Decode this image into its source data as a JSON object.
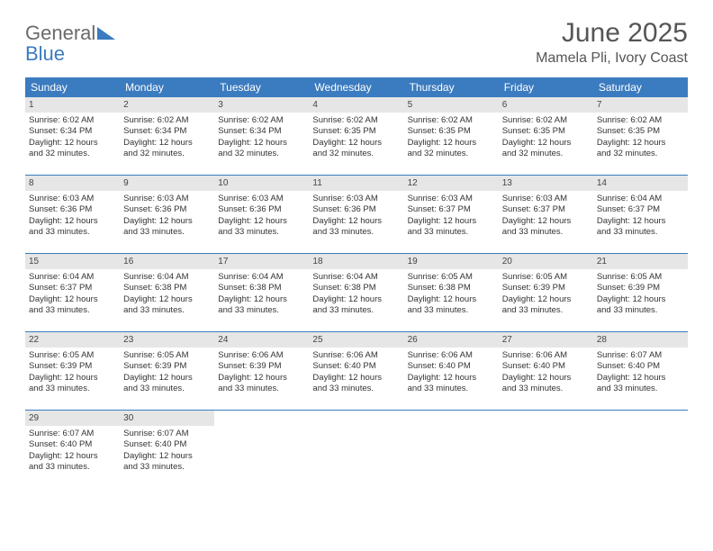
{
  "logo": {
    "general": "General",
    "blue": "Blue"
  },
  "title": "June 2025",
  "location": "Mamela Pli, Ivory Coast",
  "colors": {
    "header_bg": "#3b7bbf",
    "header_text": "#ffffff",
    "daynum_bg": "#e6e6e6",
    "rule": "#3b7bbf",
    "body_text": "#333333",
    "title_text": "#555555"
  },
  "day_headers": [
    "Sunday",
    "Monday",
    "Tuesday",
    "Wednesday",
    "Thursday",
    "Friday",
    "Saturday"
  ],
  "weeks": [
    [
      {
        "n": "1",
        "sr": "Sunrise: 6:02 AM",
        "ss": "Sunset: 6:34 PM",
        "dl1": "Daylight: 12 hours",
        "dl2": "and 32 minutes."
      },
      {
        "n": "2",
        "sr": "Sunrise: 6:02 AM",
        "ss": "Sunset: 6:34 PM",
        "dl1": "Daylight: 12 hours",
        "dl2": "and 32 minutes."
      },
      {
        "n": "3",
        "sr": "Sunrise: 6:02 AM",
        "ss": "Sunset: 6:34 PM",
        "dl1": "Daylight: 12 hours",
        "dl2": "and 32 minutes."
      },
      {
        "n": "4",
        "sr": "Sunrise: 6:02 AM",
        "ss": "Sunset: 6:35 PM",
        "dl1": "Daylight: 12 hours",
        "dl2": "and 32 minutes."
      },
      {
        "n": "5",
        "sr": "Sunrise: 6:02 AM",
        "ss": "Sunset: 6:35 PM",
        "dl1": "Daylight: 12 hours",
        "dl2": "and 32 minutes."
      },
      {
        "n": "6",
        "sr": "Sunrise: 6:02 AM",
        "ss": "Sunset: 6:35 PM",
        "dl1": "Daylight: 12 hours",
        "dl2": "and 32 minutes."
      },
      {
        "n": "7",
        "sr": "Sunrise: 6:02 AM",
        "ss": "Sunset: 6:35 PM",
        "dl1": "Daylight: 12 hours",
        "dl2": "and 32 minutes."
      }
    ],
    [
      {
        "n": "8",
        "sr": "Sunrise: 6:03 AM",
        "ss": "Sunset: 6:36 PM",
        "dl1": "Daylight: 12 hours",
        "dl2": "and 33 minutes."
      },
      {
        "n": "9",
        "sr": "Sunrise: 6:03 AM",
        "ss": "Sunset: 6:36 PM",
        "dl1": "Daylight: 12 hours",
        "dl2": "and 33 minutes."
      },
      {
        "n": "10",
        "sr": "Sunrise: 6:03 AM",
        "ss": "Sunset: 6:36 PM",
        "dl1": "Daylight: 12 hours",
        "dl2": "and 33 minutes."
      },
      {
        "n": "11",
        "sr": "Sunrise: 6:03 AM",
        "ss": "Sunset: 6:36 PM",
        "dl1": "Daylight: 12 hours",
        "dl2": "and 33 minutes."
      },
      {
        "n": "12",
        "sr": "Sunrise: 6:03 AM",
        "ss": "Sunset: 6:37 PM",
        "dl1": "Daylight: 12 hours",
        "dl2": "and 33 minutes."
      },
      {
        "n": "13",
        "sr": "Sunrise: 6:03 AM",
        "ss": "Sunset: 6:37 PM",
        "dl1": "Daylight: 12 hours",
        "dl2": "and 33 minutes."
      },
      {
        "n": "14",
        "sr": "Sunrise: 6:04 AM",
        "ss": "Sunset: 6:37 PM",
        "dl1": "Daylight: 12 hours",
        "dl2": "and 33 minutes."
      }
    ],
    [
      {
        "n": "15",
        "sr": "Sunrise: 6:04 AM",
        "ss": "Sunset: 6:37 PM",
        "dl1": "Daylight: 12 hours",
        "dl2": "and 33 minutes."
      },
      {
        "n": "16",
        "sr": "Sunrise: 6:04 AM",
        "ss": "Sunset: 6:38 PM",
        "dl1": "Daylight: 12 hours",
        "dl2": "and 33 minutes."
      },
      {
        "n": "17",
        "sr": "Sunrise: 6:04 AM",
        "ss": "Sunset: 6:38 PM",
        "dl1": "Daylight: 12 hours",
        "dl2": "and 33 minutes."
      },
      {
        "n": "18",
        "sr": "Sunrise: 6:04 AM",
        "ss": "Sunset: 6:38 PM",
        "dl1": "Daylight: 12 hours",
        "dl2": "and 33 minutes."
      },
      {
        "n": "19",
        "sr": "Sunrise: 6:05 AM",
        "ss": "Sunset: 6:38 PM",
        "dl1": "Daylight: 12 hours",
        "dl2": "and 33 minutes."
      },
      {
        "n": "20",
        "sr": "Sunrise: 6:05 AM",
        "ss": "Sunset: 6:39 PM",
        "dl1": "Daylight: 12 hours",
        "dl2": "and 33 minutes."
      },
      {
        "n": "21",
        "sr": "Sunrise: 6:05 AM",
        "ss": "Sunset: 6:39 PM",
        "dl1": "Daylight: 12 hours",
        "dl2": "and 33 minutes."
      }
    ],
    [
      {
        "n": "22",
        "sr": "Sunrise: 6:05 AM",
        "ss": "Sunset: 6:39 PM",
        "dl1": "Daylight: 12 hours",
        "dl2": "and 33 minutes."
      },
      {
        "n": "23",
        "sr": "Sunrise: 6:05 AM",
        "ss": "Sunset: 6:39 PM",
        "dl1": "Daylight: 12 hours",
        "dl2": "and 33 minutes."
      },
      {
        "n": "24",
        "sr": "Sunrise: 6:06 AM",
        "ss": "Sunset: 6:39 PM",
        "dl1": "Daylight: 12 hours",
        "dl2": "and 33 minutes."
      },
      {
        "n": "25",
        "sr": "Sunrise: 6:06 AM",
        "ss": "Sunset: 6:40 PM",
        "dl1": "Daylight: 12 hours",
        "dl2": "and 33 minutes."
      },
      {
        "n": "26",
        "sr": "Sunrise: 6:06 AM",
        "ss": "Sunset: 6:40 PM",
        "dl1": "Daylight: 12 hours",
        "dl2": "and 33 minutes."
      },
      {
        "n": "27",
        "sr": "Sunrise: 6:06 AM",
        "ss": "Sunset: 6:40 PM",
        "dl1": "Daylight: 12 hours",
        "dl2": "and 33 minutes."
      },
      {
        "n": "28",
        "sr": "Sunrise: 6:07 AM",
        "ss": "Sunset: 6:40 PM",
        "dl1": "Daylight: 12 hours",
        "dl2": "and 33 minutes."
      }
    ],
    [
      {
        "n": "29",
        "sr": "Sunrise: 6:07 AM",
        "ss": "Sunset: 6:40 PM",
        "dl1": "Daylight: 12 hours",
        "dl2": "and 33 minutes."
      },
      {
        "n": "30",
        "sr": "Sunrise: 6:07 AM",
        "ss": "Sunset: 6:40 PM",
        "dl1": "Daylight: 12 hours",
        "dl2": "and 33 minutes."
      },
      {
        "empty": true
      },
      {
        "empty": true
      },
      {
        "empty": true
      },
      {
        "empty": true
      },
      {
        "empty": true
      }
    ]
  ]
}
